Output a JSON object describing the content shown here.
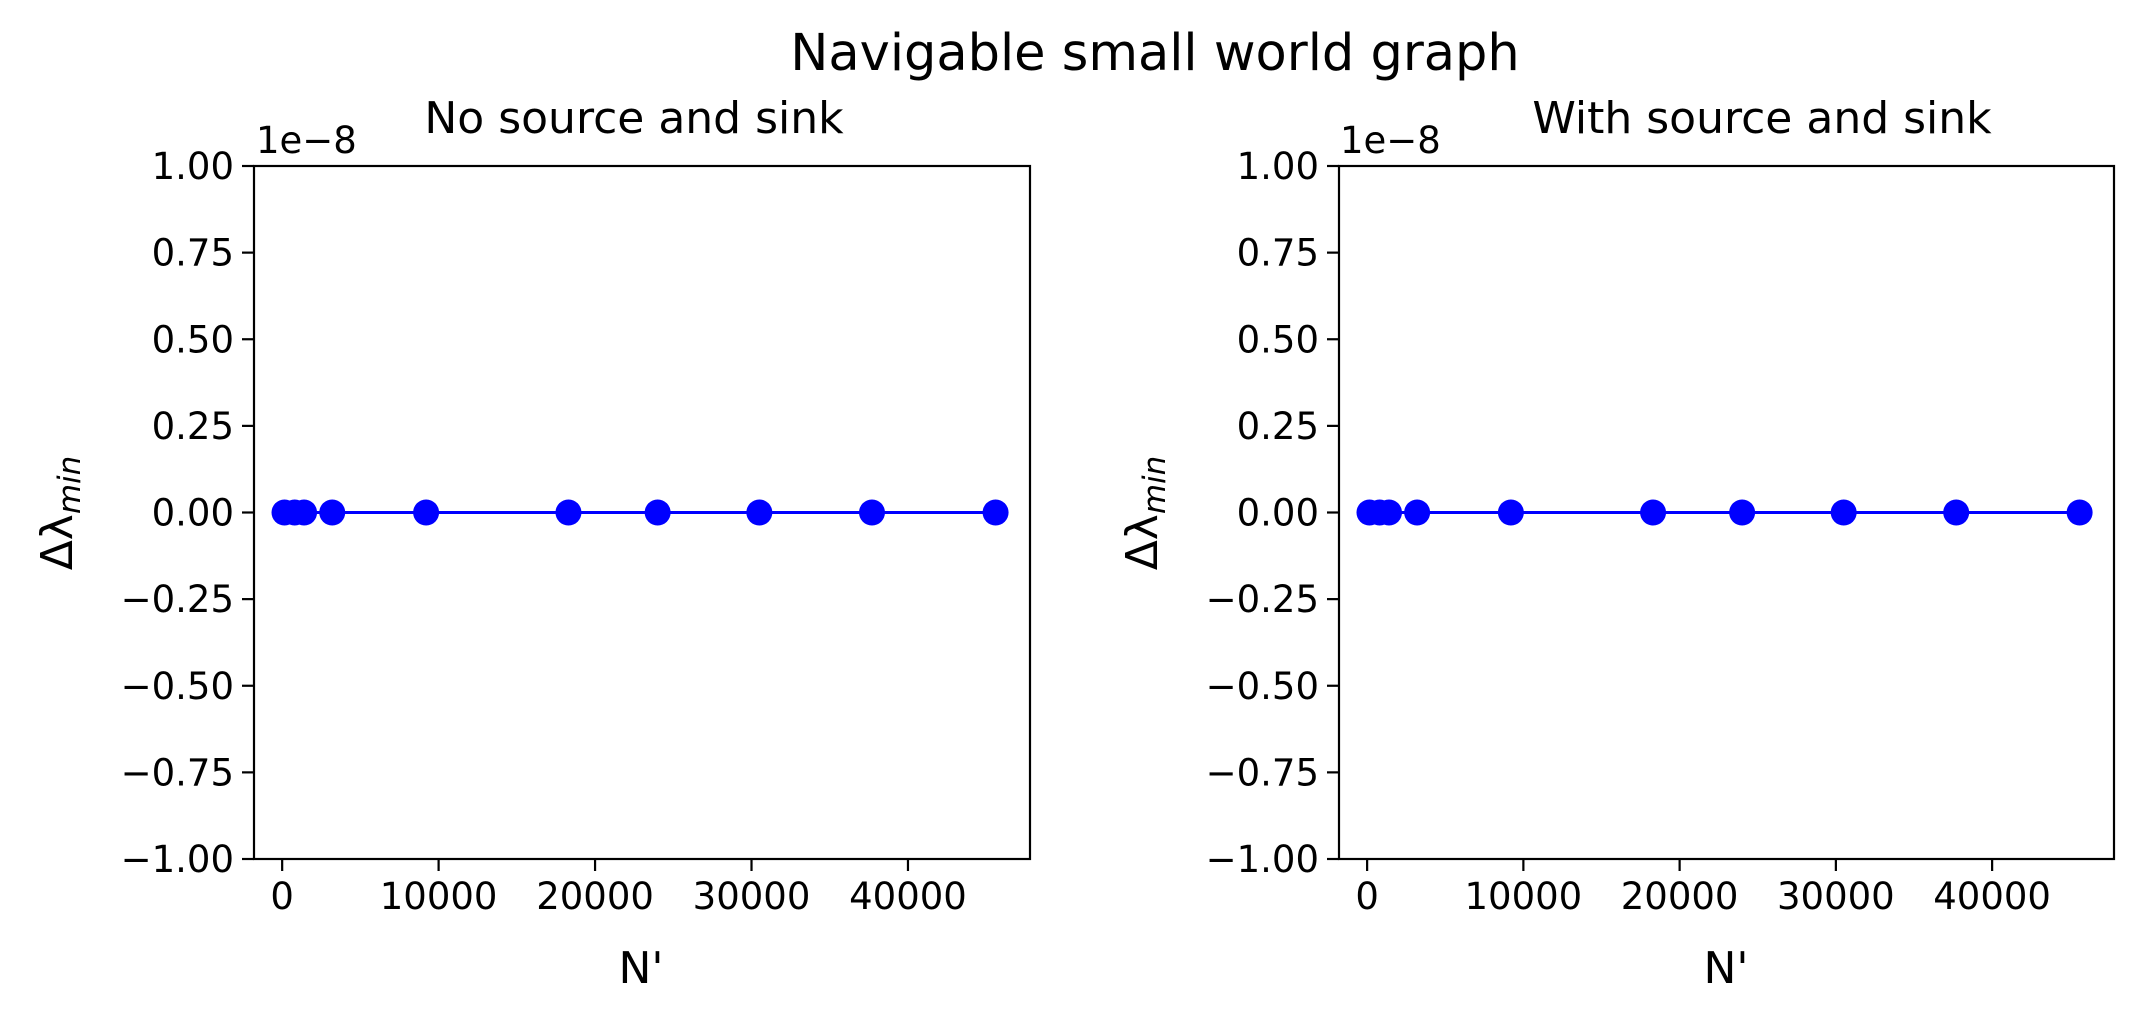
{
  "figure": {
    "suptitle": "Navigable small world graph"
  },
  "colors": {
    "series": "#0000ff",
    "axes": "#000000",
    "background": "#ffffff"
  },
  "chart_data": [
    {
      "type": "line",
      "title": "No source and sink",
      "xlabel": "N'",
      "ylabel": "Δλ",
      "ylabel_subscript": "min",
      "y_offset_label": "1e−8",
      "xlim": [
        -1800,
        47800
      ],
      "ylim": [
        -1,
        1
      ],
      "xticks": [
        0,
        10000,
        20000,
        30000,
        40000
      ],
      "xtick_labels": [
        "0",
        "10000",
        "20000",
        "30000",
        "40000"
      ],
      "yticks": [
        -1.0,
        -0.75,
        -0.5,
        -0.25,
        0.0,
        0.25,
        0.5,
        0.75,
        1.0
      ],
      "ytick_labels": [
        "−1.00",
        "−0.75",
        "−0.50",
        "−0.25",
        "0.00",
        "0.25",
        "0.50",
        "0.75",
        "1.00"
      ],
      "grid": false,
      "series": [
        {
          "marker": "circle",
          "x": [
            150,
            800,
            1400,
            3200,
            9200,
            18300,
            24000,
            30500,
            37700,
            45600
          ],
          "y": [
            0,
            0,
            0,
            0,
            0,
            0,
            0,
            0,
            0,
            0
          ]
        }
      ]
    },
    {
      "type": "line",
      "title": "With source and sink",
      "xlabel": "N'",
      "ylabel": "Δλ",
      "ylabel_subscript": "min",
      "y_offset_label": "1e−8",
      "xlim": [
        -1800,
        47800
      ],
      "ylim": [
        -1,
        1
      ],
      "xticks": [
        0,
        10000,
        20000,
        30000,
        40000
      ],
      "xtick_labels": [
        "0",
        "10000",
        "20000",
        "30000",
        "40000"
      ],
      "yticks": [
        -1.0,
        -0.75,
        -0.5,
        -0.25,
        0.0,
        0.25,
        0.5,
        0.75,
        1.0
      ],
      "ytick_labels": [
        "−1.00",
        "−0.75",
        "−0.50",
        "−0.25",
        "0.00",
        "0.25",
        "0.50",
        "0.75",
        "1.00"
      ],
      "grid": false,
      "series": [
        {
          "marker": "circle",
          "x": [
            150,
            800,
            1400,
            3200,
            9200,
            18300,
            24000,
            30500,
            37700,
            45600
          ],
          "y": [
            0,
            0,
            0,
            0,
            0,
            0,
            0,
            0,
            0,
            0
          ]
        }
      ]
    }
  ]
}
